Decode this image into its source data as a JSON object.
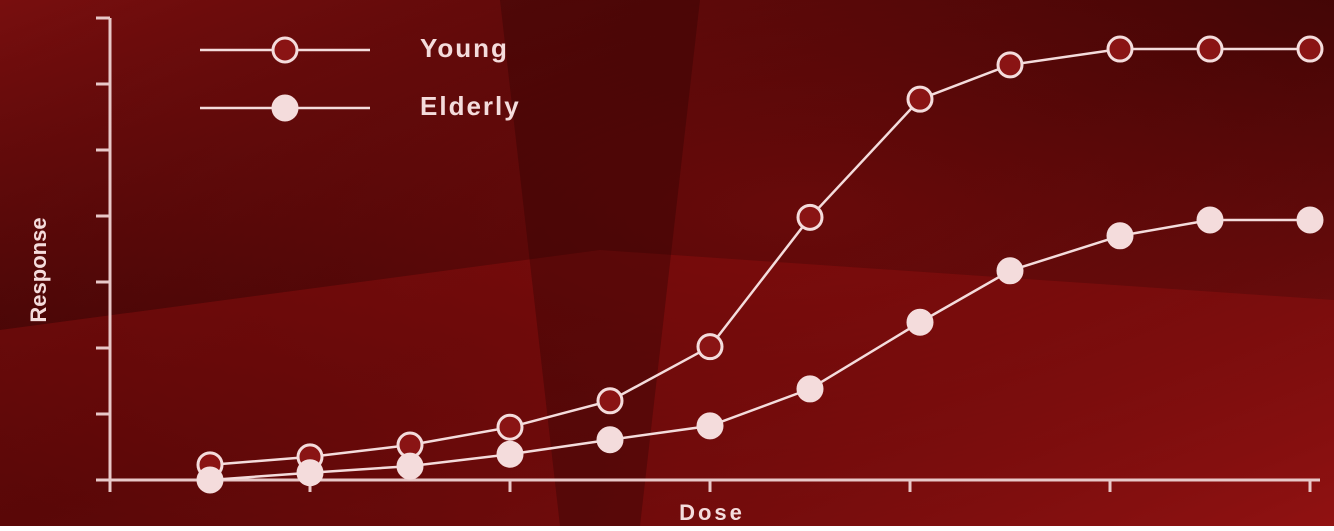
{
  "chart_data": {
    "type": "line",
    "xlabel": "Dose",
    "ylabel": "Response",
    "x": [
      0.5,
      1,
      1.5,
      2,
      2.5,
      3,
      3.5,
      4.05,
      4.5,
      5.05,
      5.5,
      6
    ],
    "series": [
      {
        "name": "Young",
        "color": "#f4dcdc",
        "marker": "open",
        "values": [
          0.23,
          0.35,
          0.53,
          0.8,
          1.2,
          2.02,
          3.98,
          5.77,
          6.29,
          6.53,
          6.53,
          6.53
        ]
      },
      {
        "name": "Elderly",
        "color": "#f4dcdc",
        "marker": "filled",
        "values": [
          0,
          0.11,
          0.21,
          0.39,
          0.61,
          0.82,
          1.38,
          2.39,
          3.17,
          3.7,
          3.94,
          3.94
        ]
      }
    ],
    "xlim": [
      0,
      6.05
    ],
    "ylim": [
      0,
      7
    ],
    "xticks": [
      0,
      1,
      2,
      3,
      4,
      5,
      6
    ],
    "yticks": [
      0,
      1,
      2,
      3,
      4,
      5,
      6,
      7
    ]
  }
}
